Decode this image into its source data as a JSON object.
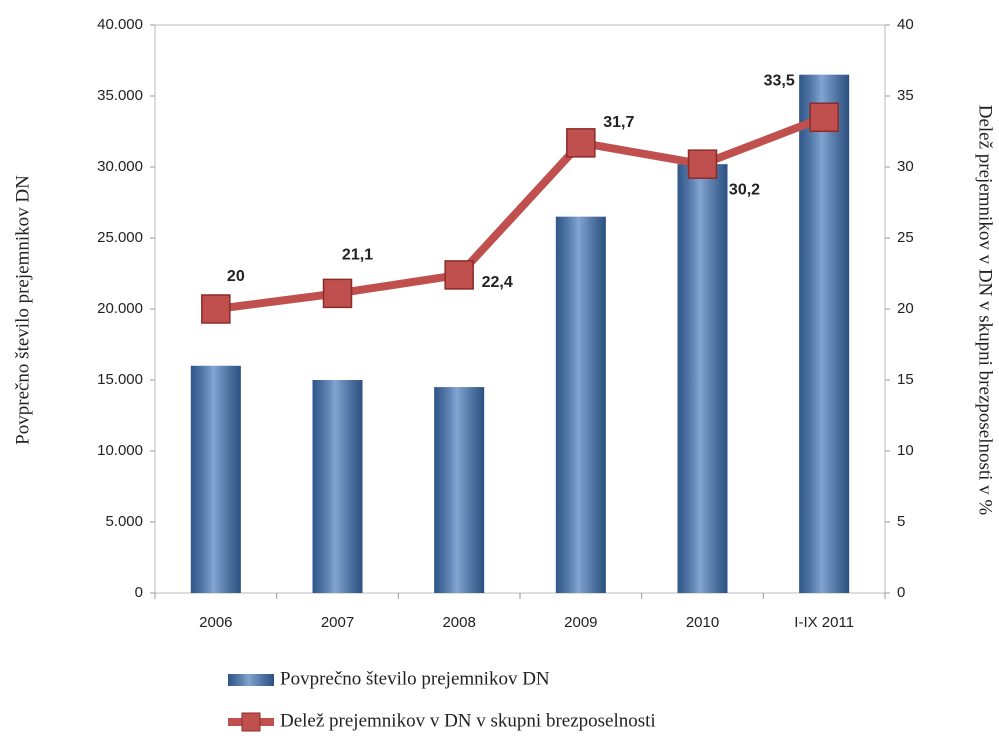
{
  "chart_data": {
    "type": "bar",
    "y_label": "Povprečno število prejemnikov  DN",
    "y2_label": "Delež prejemnikov  v DN v skupni brezposelnosti  v %",
    "categories": [
      "2006",
      "2007",
      "2008",
      "2009",
      "2010",
      "I-IX 2011"
    ],
    "series": [
      {
        "name": "Povprečno število prejemnikov DN",
        "type": "bar",
        "color": "#3f74b8",
        "values": [
          16000,
          15000,
          14500,
          26500,
          30200,
          36500
        ]
      },
      {
        "name": "Delež prejemnikov v DN v skupni brezposelnosti",
        "type": "line",
        "axis": "y2",
        "color": "#c0504d",
        "values": [
          20,
          21.1,
          22.4,
          31.7,
          30.2,
          33.5
        ],
        "value_labels": [
          "20",
          "21,1",
          "22,4",
          "31,7",
          "30,2",
          "33,5"
        ]
      }
    ],
    "ylim": [
      0,
      40000
    ],
    "yticks": [
      0,
      {
        "value": 5000,
        "label": "5.000"
      },
      {
        "value": 10000,
        "label": "10.000"
      },
      {
        "value": 15000,
        "label": "15.000"
      },
      {
        "value": 20000,
        "label": "20.000"
      },
      {
        "value": 25000,
        "label": "25.000"
      },
      {
        "value": 30000,
        "label": "30.000"
      },
      {
        "value": 35000,
        "label": "35.000"
      },
      {
        "value": 40000,
        "label": "40.000"
      }
    ],
    "y2lim": [
      0,
      40
    ],
    "y2ticks": [
      0,
      5,
      10,
      15,
      20,
      25,
      30,
      35,
      40
    ],
    "legend": "bottom",
    "grid": false
  }
}
